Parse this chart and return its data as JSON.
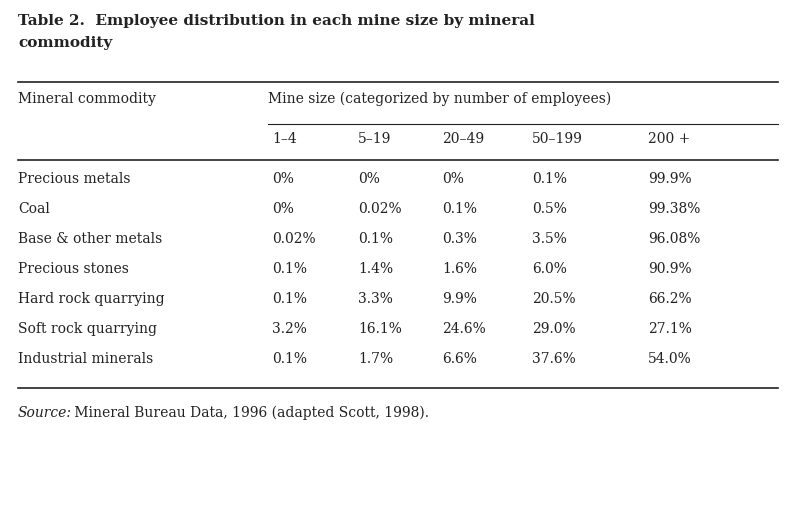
{
  "title_line1": "Table 2.  Employee distribution in each mine size by mineral",
  "title_line2": "commodity",
  "col_header_left": "Mineral commodity",
  "col_header_right": "Mine size (categorized by number of employees)",
  "size_categories": [
    "1–4",
    "5–19",
    "20–49",
    "50–199",
    "200 +"
  ],
  "rows": [
    {
      "label": "Precious metals",
      "values": [
        "0%",
        "0%",
        "0%",
        "0.1%",
        "99.9%"
      ]
    },
    {
      "label": "Coal",
      "values": [
        "0%",
        "0.02%",
        "0.1%",
        "0.5%",
        "99.38%"
      ]
    },
    {
      "label": "Base & other metals",
      "values": [
        "0.02%",
        "0.1%",
        "0.3%",
        "3.5%",
        "96.08%"
      ]
    },
    {
      "label": "Precious stones",
      "values": [
        "0.1%",
        "1.4%",
        "1.6%",
        "6.0%",
        "90.9%"
      ]
    },
    {
      "label": "Hard rock quarrying",
      "values": [
        "0.1%",
        "3.3%",
        "9.9%",
        "20.5%",
        "66.2%"
      ]
    },
    {
      "label": "Soft rock quarrying",
      "values": [
        "3.2%",
        "16.1%",
        "24.6%",
        "29.0%",
        "27.1%"
      ]
    },
    {
      "label": "Industrial minerals",
      "values": [
        "0.1%",
        "1.7%",
        "6.6%",
        "37.6%",
        "54.0%"
      ]
    }
  ],
  "source_italic": "Source",
  "source_text": " Mineral Bureau Data, 1996 (adapted Scott, 1998).",
  "bg_color": "#ffffff",
  "text_color": "#222222",
  "font_size_title": 11.0,
  "font_size_body": 10.0,
  "font_size_source": 10.0
}
